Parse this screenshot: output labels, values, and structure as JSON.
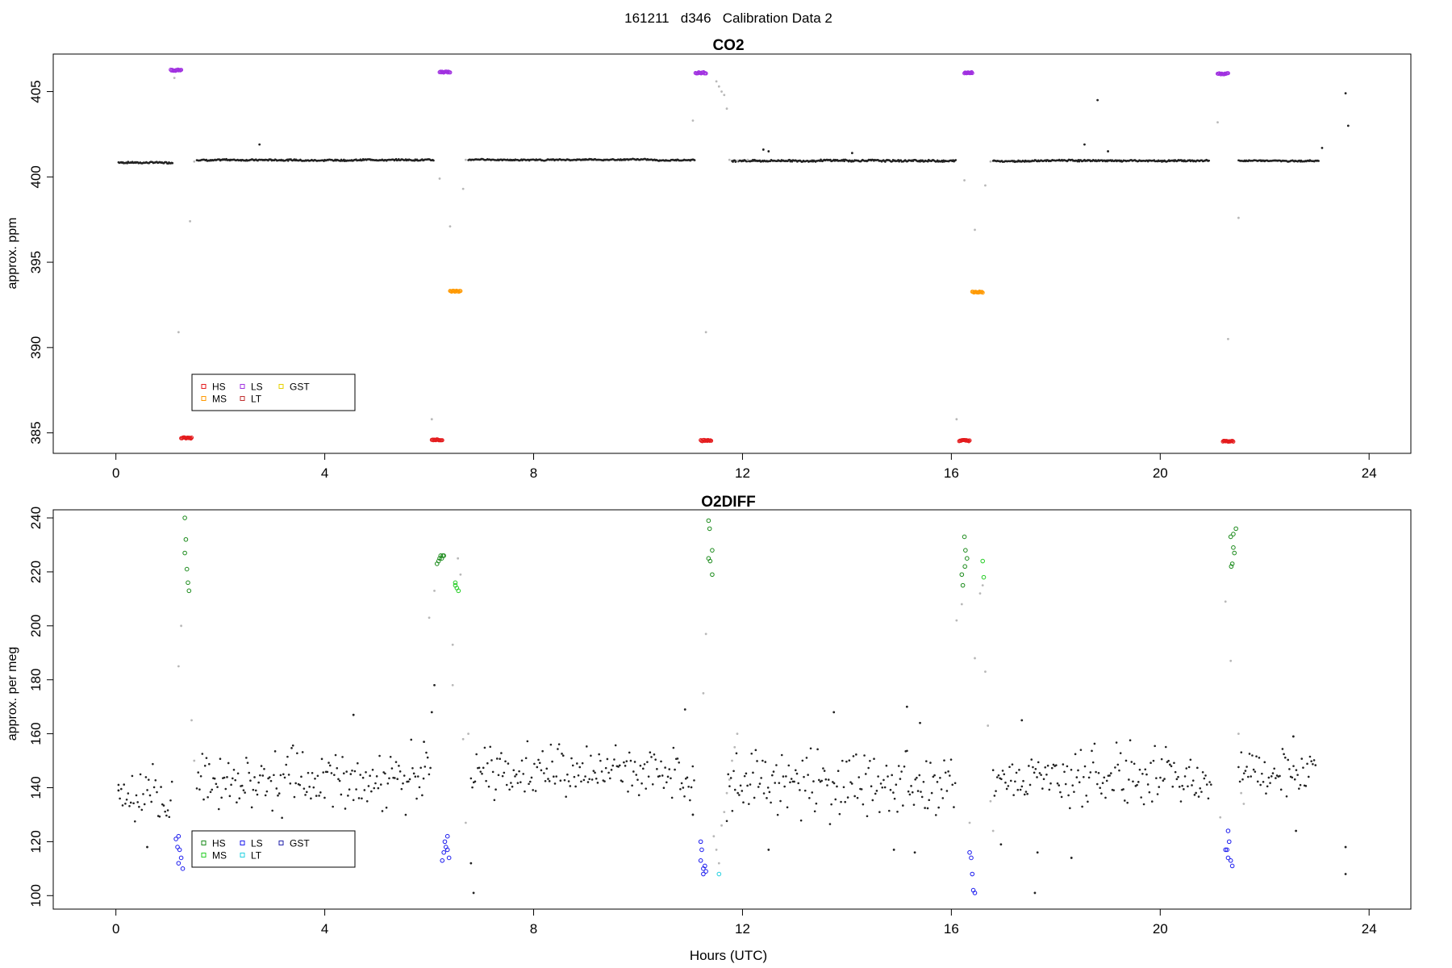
{
  "page_title": "161211   d346   Calibration Data 2",
  "chart_data": [
    {
      "type": "scatter",
      "title": "CO2",
      "xlabel": "",
      "ylabel": "approx. ppm",
      "xlim": [
        -1.2,
        24.8
      ],
      "ylim": [
        383.8,
        407.2
      ],
      "xticks": [
        0,
        4,
        8,
        12,
        16,
        20,
        24
      ],
      "yticks": [
        385,
        390,
        395,
        400,
        405
      ],
      "grid": false,
      "legend": {
        "placement": "bottom-left",
        "entries": [
          {
            "label": "HS",
            "color": "#e41a1c"
          },
          {
            "label": "MS",
            "color": "#ff9900"
          },
          {
            "label": "LS",
            "color": "#a030e0"
          },
          {
            "label": "LT",
            "color": "#c03030"
          },
          {
            "label": "GST",
            "color": "#e6d000"
          }
        ]
      },
      "ambient_segments": [
        {
          "t0": 0.05,
          "t1": 1.1,
          "level": 400.85,
          "jitter": 0.08
        },
        {
          "t0": 1.55,
          "t1": 6.1,
          "level": 401.0,
          "jitter": 0.08
        },
        {
          "t0": 6.75,
          "t1": 11.1,
          "level": 401.0,
          "jitter": 0.06
        },
        {
          "t0": 11.8,
          "t1": 16.1,
          "level": 400.95,
          "jitter": 0.1
        },
        {
          "t0": 16.8,
          "t1": 20.95,
          "level": 400.95,
          "jitter": 0.08
        },
        {
          "t0": 21.5,
          "t1": 23.05,
          "level": 400.95,
          "jitter": 0.06
        }
      ],
      "extra_points": [
        {
          "x": 2.75,
          "y": 401.9
        },
        {
          "x": 12.4,
          "y": 401.6
        },
        {
          "x": 12.5,
          "y": 401.5
        },
        {
          "x": 14.1,
          "y": 401.4
        },
        {
          "x": 18.55,
          "y": 401.9
        },
        {
          "x": 18.8,
          "y": 404.5
        },
        {
          "x": 19.0,
          "y": 401.5
        },
        {
          "x": 23.1,
          "y": 401.7
        },
        {
          "x": 23.55,
          "y": 404.9
        },
        {
          "x": 23.6,
          "y": 403.0
        }
      ],
      "transition_points": [
        {
          "x": 1.12,
          "y": 405.8
        },
        {
          "x": 1.2,
          "y": 390.9
        },
        {
          "x": 1.42,
          "y": 397.4
        },
        {
          "x": 1.5,
          "y": 400.9
        },
        {
          "x": 6.05,
          "y": 385.8
        },
        {
          "x": 6.2,
          "y": 399.9
        },
        {
          "x": 6.4,
          "y": 397.1
        },
        {
          "x": 6.65,
          "y": 399.3
        },
        {
          "x": 6.7,
          "y": 401.0
        },
        {
          "x": 11.05,
          "y": 403.3
        },
        {
          "x": 11.3,
          "y": 390.9
        },
        {
          "x": 11.5,
          "y": 405.6
        },
        {
          "x": 11.55,
          "y": 405.3
        },
        {
          "x": 11.6,
          "y": 405.0
        },
        {
          "x": 11.65,
          "y": 404.8
        },
        {
          "x": 11.7,
          "y": 404.0
        },
        {
          "x": 11.75,
          "y": 401.0
        },
        {
          "x": 11.9,
          "y": 400.95
        },
        {
          "x": 12.1,
          "y": 401.0
        },
        {
          "x": 16.1,
          "y": 385.8
        },
        {
          "x": 16.25,
          "y": 399.8
        },
        {
          "x": 16.45,
          "y": 396.9
        },
        {
          "x": 16.65,
          "y": 399.5
        },
        {
          "x": 16.75,
          "y": 400.9
        },
        {
          "x": 21.1,
          "y": 403.2
        },
        {
          "x": 21.3,
          "y": 390.5
        },
        {
          "x": 21.5,
          "y": 397.6
        }
      ],
      "calibration_series": [
        {
          "name": "HS",
          "color": "#e41a1c",
          "clusters": [
            {
              "x0": 1.25,
              "x1": 1.45,
              "y": 384.7
            },
            {
              "x0": 6.05,
              "x1": 6.25,
              "y": 384.6
            },
            {
              "x0": 11.2,
              "x1": 11.4,
              "y": 384.55
            },
            {
              "x0": 16.15,
              "x1": 16.35,
              "y": 384.55
            },
            {
              "x0": 21.2,
              "x1": 21.4,
              "y": 384.5
            }
          ]
        },
        {
          "name": "LS",
          "color": "#a030e0",
          "clusters": [
            {
              "x0": 1.05,
              "x1": 1.25,
              "y": 406.25
            },
            {
              "x0": 6.2,
              "x1": 6.4,
              "y": 406.15
            },
            {
              "x0": 11.1,
              "x1": 11.3,
              "y": 406.1
            },
            {
              "x0": 16.25,
              "x1": 16.4,
              "y": 406.1
            },
            {
              "x0": 21.1,
              "x1": 21.3,
              "y": 406.05
            }
          ]
        },
        {
          "name": "MS",
          "color": "#ff9900",
          "clusters": [
            {
              "x0": 6.4,
              "x1": 6.6,
              "y": 393.3
            },
            {
              "x0": 16.4,
              "x1": 16.6,
              "y": 393.25
            }
          ]
        }
      ]
    },
    {
      "type": "scatter",
      "title": "O2DIFF",
      "xlabel": "Hours (UTC)",
      "ylabel": "approx. per meg",
      "xlim": [
        -1.2,
        24.8
      ],
      "ylim": [
        95,
        243
      ],
      "xticks": [
        0,
        4,
        8,
        12,
        16,
        20,
        24
      ],
      "yticks": [
        100,
        120,
        140,
        160,
        180,
        200,
        220,
        240
      ],
      "grid": false,
      "legend": {
        "placement": "bottom-left",
        "entries": [
          {
            "label": "HS",
            "color": "#1a8a1a"
          },
          {
            "label": "MS",
            "color": "#22cc22"
          },
          {
            "label": "LS",
            "color": "#1a1aee"
          },
          {
            "label": "LT",
            "color": "#22d0e0"
          },
          {
            "label": "GST",
            "color": "#2222aa"
          }
        ]
      },
      "ambient_segments": [
        {
          "t0": 0.05,
          "t1": 1.1,
          "level": 135,
          "jitter": 8
        },
        {
          "t0": 1.55,
          "t1": 6.05,
          "level": 143,
          "jitter": 8
        },
        {
          "t0": 6.8,
          "t1": 11.1,
          "level": 146,
          "jitter": 7
        },
        {
          "t0": 11.7,
          "t1": 16.1,
          "level": 142,
          "jitter": 10
        },
        {
          "t0": 16.8,
          "t1": 21.0,
          "level": 144,
          "jitter": 8
        },
        {
          "t0": 21.5,
          "t1": 23.0,
          "level": 146,
          "jitter": 6
        }
      ],
      "extra_points": [
        {
          "x": 0.05,
          "y": 139
        },
        {
          "x": 0.6,
          "y": 118
        },
        {
          "x": 4.55,
          "y": 167
        },
        {
          "x": 5.9,
          "y": 157
        },
        {
          "x": 6.05,
          "y": 168
        },
        {
          "x": 6.1,
          "y": 178
        },
        {
          "x": 6.85,
          "y": 101
        },
        {
          "x": 6.8,
          "y": 112
        },
        {
          "x": 10.9,
          "y": 169
        },
        {
          "x": 11.05,
          "y": 130
        },
        {
          "x": 12.5,
          "y": 117
        },
        {
          "x": 13.75,
          "y": 168
        },
        {
          "x": 15.15,
          "y": 170
        },
        {
          "x": 15.4,
          "y": 164
        },
        {
          "x": 14.9,
          "y": 117
        },
        {
          "x": 15.3,
          "y": 116
        },
        {
          "x": 16.95,
          "y": 119
        },
        {
          "x": 17.35,
          "y": 165
        },
        {
          "x": 17.6,
          "y": 101
        },
        {
          "x": 17.65,
          "y": 116
        },
        {
          "x": 18.3,
          "y": 114
        },
        {
          "x": 22.6,
          "y": 124
        },
        {
          "x": 23.55,
          "y": 118
        },
        {
          "x": 23.55,
          "y": 108
        },
        {
          "x": 22.55,
          "y": 159
        }
      ],
      "transition_points": [
        {
          "x": 1.2,
          "y": 185
        },
        {
          "x": 1.25,
          "y": 200
        },
        {
          "x": 1.45,
          "y": 165
        },
        {
          "x": 1.5,
          "y": 150
        },
        {
          "x": 6.0,
          "y": 203
        },
        {
          "x": 6.1,
          "y": 213
        },
        {
          "x": 6.45,
          "y": 193
        },
        {
          "x": 6.45,
          "y": 178
        },
        {
          "x": 6.55,
          "y": 225
        },
        {
          "x": 6.6,
          "y": 219
        },
        {
          "x": 6.65,
          "y": 158
        },
        {
          "x": 6.7,
          "y": 127
        },
        {
          "x": 6.75,
          "y": 160
        },
        {
          "x": 11.25,
          "y": 175
        },
        {
          "x": 11.3,
          "y": 197
        },
        {
          "x": 11.45,
          "y": 122
        },
        {
          "x": 11.5,
          "y": 117
        },
        {
          "x": 11.55,
          "y": 112
        },
        {
          "x": 11.6,
          "y": 126
        },
        {
          "x": 11.65,
          "y": 131
        },
        {
          "x": 11.7,
          "y": 138
        },
        {
          "x": 11.75,
          "y": 143
        },
        {
          "x": 11.8,
          "y": 150
        },
        {
          "x": 11.85,
          "y": 155
        },
        {
          "x": 11.9,
          "y": 160
        },
        {
          "x": 16.1,
          "y": 202
        },
        {
          "x": 16.2,
          "y": 208
        },
        {
          "x": 16.35,
          "y": 127
        },
        {
          "x": 16.45,
          "y": 188
        },
        {
          "x": 16.55,
          "y": 212
        },
        {
          "x": 16.6,
          "y": 215
        },
        {
          "x": 16.65,
          "y": 183
        },
        {
          "x": 16.7,
          "y": 163
        },
        {
          "x": 16.75,
          "y": 135
        },
        {
          "x": 16.8,
          "y": 124
        },
        {
          "x": 21.15,
          "y": 129
        },
        {
          "x": 21.25,
          "y": 209
        },
        {
          "x": 21.35,
          "y": 187
        },
        {
          "x": 21.5,
          "y": 160
        },
        {
          "x": 21.55,
          "y": 138
        },
        {
          "x": 21.6,
          "y": 134
        }
      ],
      "calibration_series": [
        {
          "name": "HS",
          "color": "#1a8a1a",
          "points": [
            {
              "x": 1.32,
              "y": 240
            },
            {
              "x": 1.34,
              "y": 232
            },
            {
              "x": 1.32,
              "y": 227
            },
            {
              "x": 1.36,
              "y": 221
            },
            {
              "x": 1.38,
              "y": 216
            },
            {
              "x": 1.4,
              "y": 213
            },
            {
              "x": 6.15,
              "y": 223
            },
            {
              "x": 6.18,
              "y": 224
            },
            {
              "x": 6.2,
              "y": 225
            },
            {
              "x": 6.22,
              "y": 226
            },
            {
              "x": 6.24,
              "y": 225
            },
            {
              "x": 6.26,
              "y": 226
            },
            {
              "x": 6.28,
              "y": 226
            },
            {
              "x": 11.35,
              "y": 239
            },
            {
              "x": 11.37,
              "y": 236
            },
            {
              "x": 11.35,
              "y": 225
            },
            {
              "x": 11.38,
              "y": 224
            },
            {
              "x": 11.42,
              "y": 228
            },
            {
              "x": 11.42,
              "y": 219
            },
            {
              "x": 16.2,
              "y": 219
            },
            {
              "x": 16.22,
              "y": 215
            },
            {
              "x": 16.25,
              "y": 233
            },
            {
              "x": 16.27,
              "y": 228
            },
            {
              "x": 16.3,
              "y": 225
            },
            {
              "x": 16.26,
              "y": 222
            },
            {
              "x": 21.35,
              "y": 233
            },
            {
              "x": 21.4,
              "y": 234
            },
            {
              "x": 21.45,
              "y": 236
            },
            {
              "x": 21.4,
              "y": 229
            },
            {
              "x": 21.42,
              "y": 227
            },
            {
              "x": 21.38,
              "y": 223
            },
            {
              "x": 21.36,
              "y": 222
            }
          ]
        },
        {
          "name": "MS",
          "color": "#22cc22",
          "points": [
            {
              "x": 6.5,
              "y": 215
            },
            {
              "x": 6.53,
              "y": 214
            },
            {
              "x": 6.56,
              "y": 213
            },
            {
              "x": 6.5,
              "y": 216
            },
            {
              "x": 16.6,
              "y": 224
            },
            {
              "x": 16.62,
              "y": 218
            }
          ]
        },
        {
          "name": "LS",
          "color": "#1a1aee",
          "points": [
            {
              "x": 1.15,
              "y": 121
            },
            {
              "x": 1.2,
              "y": 122
            },
            {
              "x": 1.18,
              "y": 118
            },
            {
              "x": 1.22,
              "y": 117
            },
            {
              "x": 1.25,
              "y": 114
            },
            {
              "x": 1.2,
              "y": 112
            },
            {
              "x": 1.28,
              "y": 110
            },
            {
              "x": 6.25,
              "y": 113
            },
            {
              "x": 6.28,
              "y": 116
            },
            {
              "x": 6.3,
              "y": 120
            },
            {
              "x": 6.32,
              "y": 118
            },
            {
              "x": 6.35,
              "y": 122
            },
            {
              "x": 6.35,
              "y": 117
            },
            {
              "x": 6.38,
              "y": 114
            },
            {
              "x": 11.2,
              "y": 120
            },
            {
              "x": 11.22,
              "y": 117
            },
            {
              "x": 11.2,
              "y": 113
            },
            {
              "x": 11.25,
              "y": 110
            },
            {
              "x": 11.28,
              "y": 111
            },
            {
              "x": 11.25,
              "y": 108
            },
            {
              "x": 11.3,
              "y": 109
            },
            {
              "x": 16.35,
              "y": 116
            },
            {
              "x": 16.38,
              "y": 114
            },
            {
              "x": 16.4,
              "y": 108
            },
            {
              "x": 16.42,
              "y": 102
            },
            {
              "x": 16.45,
              "y": 101
            },
            {
              "x": 21.25,
              "y": 117
            },
            {
              "x": 21.28,
              "y": 117
            },
            {
              "x": 21.3,
              "y": 124
            },
            {
              "x": 21.32,
              "y": 120
            },
            {
              "x": 21.3,
              "y": 114
            },
            {
              "x": 21.35,
              "y": 113
            },
            {
              "x": 21.38,
              "y": 111
            }
          ]
        },
        {
          "name": "LT",
          "color": "#22d0e0",
          "points": [
            {
              "x": 11.55,
              "y": 108
            }
          ]
        }
      ]
    }
  ]
}
